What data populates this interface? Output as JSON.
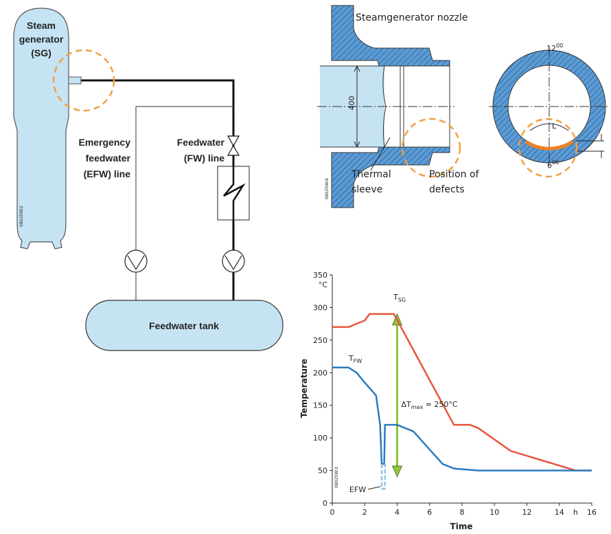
{
  "diagram": {
    "steam_generator": [
      "Steam",
      "generator",
      "(SG)"
    ],
    "efw_line": [
      "Emergency",
      "feedwater",
      "(EFW) line"
    ],
    "fw_line": [
      "Feedwater",
      "(FW) line"
    ],
    "tank": "Feedwater tank",
    "left_id": "08025902",
    "nozzle_title": "Steamgenerator nozzle",
    "diameter": "400",
    "thermal_sleeve": [
      "Thermal",
      "sleeve"
    ],
    "position_of_defects": [
      "Position of",
      "defects"
    ],
    "top_clock": {
      "text": "12",
      "sup": "00"
    },
    "bottom_clock": {
      "text": "6",
      "sup": "00"
    },
    "length": "L",
    "nozzle_id": "08025904"
  },
  "chart_data": {
    "type": "line",
    "id": "08025903",
    "y_label": "Temperature",
    "x_label": "Time",
    "y_unit": "°C",
    "x_unit": "h",
    "xlim": [
      0,
      16
    ],
    "ylim": [
      0,
      350
    ],
    "xticks": [
      0,
      2,
      4,
      6,
      8,
      10,
      12,
      14,
      16
    ],
    "yticks": [
      0,
      50,
      100,
      150,
      200,
      250,
      300,
      350
    ],
    "series": [
      {
        "name": {
          "text": "T",
          "subscript": "SG"
        },
        "color": "#e8543a",
        "dash": false,
        "x": [
          0,
          1,
          2,
          2.3,
          3.8,
          7.5,
          8.5,
          9,
          11,
          15,
          16
        ],
        "values": [
          270,
          270,
          280,
          290,
          290,
          120,
          120,
          115,
          80,
          50,
          50
        ]
      },
      {
        "name": {
          "text": "T",
          "subscript": "FW"
        },
        "color": "#2a7bc0",
        "dash": false,
        "x": [
          0,
          1,
          1.5,
          2,
          2.7,
          2.95,
          3.05,
          3.2,
          3.25,
          4,
          5,
          6.8,
          7.5,
          9,
          16
        ],
        "values": [
          208,
          208,
          200,
          185,
          165,
          120,
          60,
          60,
          120,
          120,
          110,
          60,
          53,
          50,
          50
        ]
      },
      {
        "name": "EFW",
        "color": "#8ec3ea",
        "dash": true,
        "x": [
          3.05,
          3.05,
          3.25,
          3.25
        ],
        "values": [
          60,
          22,
          22,
          60
        ]
      }
    ],
    "arrow": {
      "x": 4,
      "from": 290,
      "to": 40,
      "color": "#8dc63f"
    },
    "arrow_label": {
      "text": "ΔT",
      "subscript": "max",
      "rest": " = 250°C"
    }
  }
}
